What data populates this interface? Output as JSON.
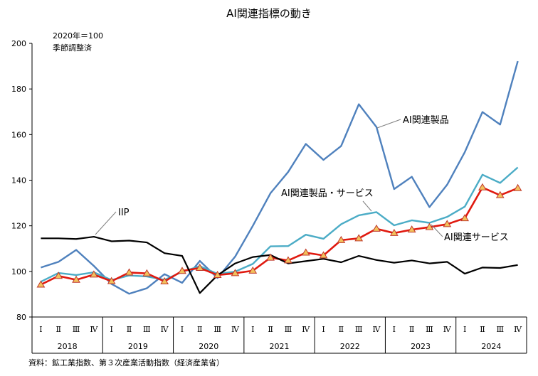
{
  "chart_data": {
    "type": "line",
    "title": "AI関連指標の動き",
    "note_lines": [
      "2020年＝100",
      "季節調整済"
    ],
    "source": "資料：鉱工業指数、第３次産業活動指数（経済産業省）",
    "ylim": [
      80,
      200
    ],
    "yticks": [
      80,
      100,
      120,
      140,
      160,
      180,
      200
    ],
    "quarter_labels": [
      "Ⅰ",
      "Ⅱ",
      "Ⅲ",
      "Ⅳ",
      "Ⅰ",
      "Ⅱ",
      "Ⅲ",
      "Ⅳ",
      "Ⅰ",
      "Ⅱ",
      "Ⅲ",
      "Ⅳ",
      "Ⅰ",
      "Ⅱ",
      "Ⅲ",
      "Ⅳ",
      "Ⅰ",
      "Ⅱ",
      "Ⅲ",
      "Ⅳ",
      "Ⅰ",
      "Ⅱ",
      "Ⅲ",
      "Ⅳ",
      "Ⅰ",
      "Ⅱ",
      "Ⅲ",
      "Ⅳ"
    ],
    "years": [
      "2018",
      "2019",
      "2020",
      "2021",
      "2022",
      "2023",
      "2024"
    ],
    "series": [
      {
        "name": "IIP",
        "color": "#000000",
        "monthly": true,
        "values": [
          114.5,
          114.5,
          114.2,
          115.2,
          113.2,
          113.5,
          112.7,
          108.0,
          106.8,
          90.5,
          98.3,
          103.5,
          106.3,
          107.2,
          103.5,
          104.5,
          105.5,
          104.0,
          106.8,
          105.0,
          103.8,
          104.8,
          103.5,
          104.2,
          99.0,
          101.7,
          101.5,
          102.8
        ]
      },
      {
        "name": "AI関連製品",
        "color": "#4f81bd",
        "values": [
          101.7,
          104.2,
          109.4,
          102.4,
          94.5,
          90.2,
          92.6,
          98.8,
          95.0,
          104.6,
          97.1,
          106.5,
          120.0,
          134.3,
          143.6,
          155.9,
          148.9,
          155.0,
          173.3,
          163.3,
          136.1,
          141.5,
          128.2,
          138.0,
          152.3,
          169.9,
          164.4,
          192.2
        ]
      },
      {
        "name": "AI関連製品・サービス",
        "color": "#4bacc6",
        "values": [
          95.5,
          99.3,
          98.4,
          99.6,
          96.2,
          98.2,
          97.8,
          96.3,
          99.8,
          102.3,
          98.9,
          99.9,
          103.3,
          111.0,
          111.1,
          116.1,
          114.3,
          120.7,
          124.6,
          126.0,
          120.2,
          122.4,
          121.3,
          123.9,
          128.4,
          142.4,
          138.8,
          145.6
        ]
      },
      {
        "name": "AI関連サービス",
        "color": "#e0190f",
        "marker": "triangle",
        "values": [
          94.2,
          98.0,
          96.3,
          98.6,
          95.7,
          99.5,
          99.1,
          95.6,
          100.2,
          101.5,
          98.4,
          99.2,
          100.3,
          106.0,
          104.8,
          108.2,
          107.0,
          113.7,
          114.5,
          118.7,
          116.8,
          118.3,
          119.4,
          120.7,
          123.3,
          136.8,
          133.4,
          136.5
        ]
      }
    ],
    "labels": {
      "iip": "IIP",
      "products": "AI関連製品",
      "prod_serv": "AI関連製品・サービス",
      "services": "AI関連サービス"
    }
  }
}
